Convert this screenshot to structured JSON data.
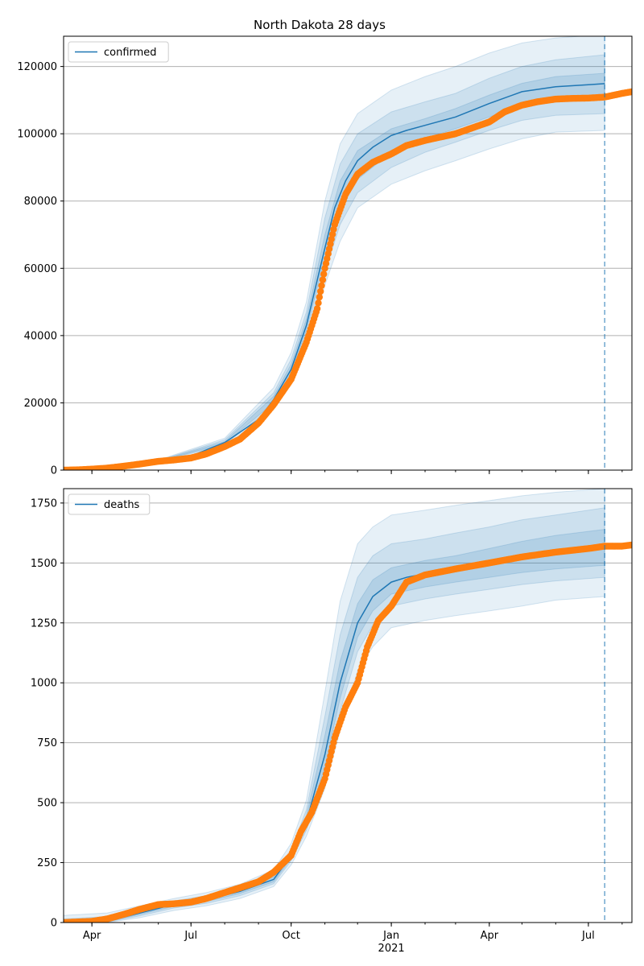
{
  "figure": {
    "title": "North Dakota 28 days"
  },
  "colors": {
    "model": "#1f77b4",
    "observed": "#ff7f0e",
    "band": "#1f77b4",
    "grid": "#b0b0b0",
    "axis": "#000000"
  },
  "chart_data": [
    {
      "type": "line",
      "name": "confirmed",
      "title": "North Dakota 28 days",
      "xlabel": "",
      "ylabel": "",
      "x_range": [
        "2020-03-06",
        "2021-08-10"
      ],
      "ylim": [
        0,
        129000
      ],
      "yticks": [
        0,
        20000,
        40000,
        60000,
        80000,
        100000,
        120000
      ],
      "ytick_labels": [
        "0",
        "20000",
        "40000",
        "60000",
        "80000",
        "100000",
        "120000"
      ],
      "grid": "horizontal",
      "legend": {
        "placement": "top-left",
        "entries": [
          "confirmed"
        ]
      },
      "forecast_start": "2021-07-16",
      "model_median": {
        "x": [
          "2020-03-06",
          "2020-04-01",
          "2020-05-01",
          "2020-06-01",
          "2020-07-01",
          "2020-08-01",
          "2020-09-01",
          "2020-09-15",
          "2020-10-01",
          "2020-10-15",
          "2020-11-01",
          "2020-11-10",
          "2020-11-20",
          "2020-12-01",
          "2020-12-15",
          "2021-01-01",
          "2021-01-15",
          "2021-02-01",
          "2021-03-01",
          "2021-04-01",
          "2021-05-01",
          "2021-06-01",
          "2021-07-01",
          "2021-07-16"
        ],
        "y": [
          0,
          300,
          1200,
          2700,
          4200,
          8200,
          15000,
          21000,
          30000,
          43000,
          66000,
          78000,
          86000,
          92000,
          96000,
          99500,
          101000,
          102500,
          105000,
          109000,
          112500,
          114000,
          114600,
          114900
        ]
      },
      "bands": [
        {
          "x": [
            "2020-03-06",
            "2020-06-01",
            "2020-08-01",
            "2020-09-15",
            "2020-10-01",
            "2020-10-15",
            "2020-11-01",
            "2020-11-15",
            "2020-12-01",
            "2021-01-01",
            "2021-02-01",
            "2021-03-01",
            "2021-04-01",
            "2021-05-01",
            "2021-06-01",
            "2021-07-16"
          ],
          "lower": [
            0,
            2500,
            7200,
            18000,
            26000,
            37000,
            55000,
            68000,
            78000,
            85000,
            89000,
            92000,
            95500,
            98500,
            100500,
            101000
          ],
          "upper": [
            200,
            3000,
            9500,
            24500,
            35000,
            50000,
            80000,
            97000,
            106000,
            113000,
            117000,
            120000,
            124000,
            127000,
            128500,
            129500
          ]
        },
        {
          "x": [
            "2020-03-06",
            "2020-06-01",
            "2020-08-01",
            "2020-09-15",
            "2020-10-01",
            "2020-10-15",
            "2020-11-01",
            "2020-11-15",
            "2020-12-01",
            "2021-01-01",
            "2021-02-01",
            "2021-03-01",
            "2021-04-01",
            "2021-05-01",
            "2021-06-01",
            "2021-07-16"
          ],
          "lower": [
            0,
            2600,
            7600,
            19000,
            27500,
            39500,
            59000,
            73000,
            82500,
            90000,
            94500,
            97500,
            101000,
            104000,
            105500,
            106000
          ],
          "upper": [
            150,
            2850,
            9000,
            23000,
            33000,
            47000,
            75000,
            91000,
            100000,
            106500,
            109500,
            112000,
            116500,
            120000,
            122000,
            123500
          ]
        },
        {
          "x": [
            "2020-03-06",
            "2020-06-01",
            "2020-08-01",
            "2020-09-15",
            "2020-10-01",
            "2020-10-15",
            "2020-11-01",
            "2020-11-15",
            "2020-12-01",
            "2021-01-01",
            "2021-02-01",
            "2021-03-01",
            "2021-04-01",
            "2021-05-01",
            "2021-06-01",
            "2021-07-16"
          ],
          "lower": [
            0,
            2650,
            7900,
            20000,
            29000,
            41500,
            63000,
            77500,
            86500,
            94500,
            98500,
            101500,
            105000,
            108500,
            110500,
            111000
          ],
          "upper": [
            100,
            2800,
            8500,
            22000,
            31500,
            45000,
            70000,
            86000,
            95000,
            101500,
            104500,
            107500,
            111500,
            115000,
            117000,
            118000
          ]
        }
      ],
      "observed": {
        "x": [
          "2020-03-06",
          "2020-03-20",
          "2020-04-01",
          "2020-04-15",
          "2020-05-01",
          "2020-05-15",
          "2020-06-01",
          "2020-06-15",
          "2020-07-01",
          "2020-07-15",
          "2020-08-01",
          "2020-08-15",
          "2020-09-01",
          "2020-09-15",
          "2020-10-01",
          "2020-10-15",
          "2020-10-25",
          "2020-11-01",
          "2020-11-10",
          "2020-11-20",
          "2020-12-01",
          "2020-12-15",
          "2021-01-01",
          "2021-01-15",
          "2021-02-01",
          "2021-03-01",
          "2021-04-01",
          "2021-04-15",
          "2021-05-01",
          "2021-05-15",
          "2021-06-01",
          "2021-06-15",
          "2021-07-01",
          "2021-07-16",
          "2021-08-01",
          "2021-08-10"
        ],
        "y": [
          0,
          100,
          300,
          600,
          1200,
          1800,
          2600,
          3000,
          3600,
          4800,
          7000,
          9200,
          14000,
          19500,
          27000,
          38000,
          48000,
          60000,
          73000,
          82000,
          88000,
          91500,
          94000,
          96500,
          98000,
          100000,
          103500,
          106500,
          108500,
          109500,
          110300,
          110500,
          110600,
          110900,
          112000,
          112500
        ]
      }
    },
    {
      "type": "line",
      "name": "deaths",
      "xlabel": "",
      "ylabel": "",
      "x_range": [
        "2020-03-06",
        "2021-08-10"
      ],
      "ylim": [
        0,
        1810
      ],
      "yticks": [
        0,
        250,
        500,
        750,
        1000,
        1250,
        1500,
        1750
      ],
      "ytick_labels": [
        "0",
        "250",
        "500",
        "750",
        "1000",
        "1250",
        "1500",
        "1750"
      ],
      "xticks": [
        "2020-04-01",
        "2020-07-01",
        "2020-10-01",
        "2021-01-01",
        "2021-04-01",
        "2021-07-01"
      ],
      "xtick_labels": [
        "Apr",
        "Jul",
        "Oct",
        "Jan",
        "Apr",
        "Jul"
      ],
      "x_year_label": {
        "date": "2021-01-01",
        "text": "2021"
      },
      "grid": "horizontal",
      "legend": {
        "placement": "top-left",
        "entries": [
          "deaths"
        ]
      },
      "forecast_start": "2021-07-16",
      "model_median": {
        "x": [
          "2020-03-06",
          "2020-04-15",
          "2020-05-15",
          "2020-06-15",
          "2020-07-15",
          "2020-08-15",
          "2020-09-15",
          "2020-10-01",
          "2020-10-15",
          "2020-11-01",
          "2020-11-15",
          "2020-12-01",
          "2020-12-15",
          "2021-01-01",
          "2021-01-15",
          "2021-02-01",
          "2021-03-01",
          "2021-04-01",
          "2021-05-01",
          "2021-06-01",
          "2021-07-01",
          "2021-07-16"
        ],
        "y": [
          0,
          5,
          40,
          75,
          95,
          130,
          180,
          280,
          420,
          700,
          1000,
          1250,
          1360,
          1420,
          1440,
          1455,
          1475,
          1495,
          1520,
          1545,
          1560,
          1565
        ]
      },
      "bands": [
        {
          "x": [
            "2020-03-06",
            "2020-04-15",
            "2020-05-15",
            "2020-06-15",
            "2020-07-15",
            "2020-08-15",
            "2020-09-15",
            "2020-10-01",
            "2020-10-15",
            "2020-11-01",
            "2020-11-15",
            "2020-12-01",
            "2020-12-15",
            "2021-01-01",
            "2021-02-01",
            "2021-03-01",
            "2021-04-01",
            "2021-05-01",
            "2021-06-01",
            "2021-07-16"
          ],
          "lower": [
            0,
            0,
            20,
            50,
            70,
            100,
            150,
            240,
            360,
            560,
            800,
            1050,
            1150,
            1230,
            1260,
            1280,
            1300,
            1320,
            1345,
            1360
          ],
          "upper": [
            30,
            40,
            70,
            100,
            125,
            160,
            220,
            330,
            510,
            960,
            1340,
            1580,
            1650,
            1700,
            1720,
            1740,
            1760,
            1780,
            1795,
            1810
          ]
        },
        {
          "x": [
            "2020-03-06",
            "2020-04-15",
            "2020-05-15",
            "2020-06-15",
            "2020-07-15",
            "2020-08-15",
            "2020-09-15",
            "2020-10-01",
            "2020-10-15",
            "2020-11-01",
            "2020-11-15",
            "2020-12-01",
            "2020-12-15",
            "2021-01-01",
            "2021-02-01",
            "2021-03-01",
            "2021-04-01",
            "2021-05-01",
            "2021-06-01",
            "2021-07-16"
          ],
          "lower": [
            0,
            2,
            28,
            60,
            80,
            112,
            162,
            258,
            385,
            610,
            880,
            1130,
            1240,
            1320,
            1350,
            1370,
            1390,
            1410,
            1425,
            1440
          ],
          "upper": [
            15,
            25,
            55,
            90,
            112,
            145,
            200,
            305,
            470,
            860,
            1200,
            1440,
            1530,
            1580,
            1600,
            1625,
            1650,
            1680,
            1700,
            1730
          ]
        },
        {
          "x": [
            "2020-03-06",
            "2020-04-15",
            "2020-05-15",
            "2020-06-15",
            "2020-07-15",
            "2020-08-15",
            "2020-09-15",
            "2020-10-01",
            "2020-10-15",
            "2020-11-01",
            "2020-11-15",
            "2020-12-01",
            "2020-12-15",
            "2021-01-01",
            "2021-02-01",
            "2021-03-01",
            "2021-04-01",
            "2021-05-01",
            "2021-06-01",
            "2021-07-16"
          ],
          "lower": [
            0,
            3,
            34,
            67,
            87,
            121,
            170,
            268,
            400,
            650,
            935,
            1190,
            1300,
            1370,
            1400,
            1420,
            1440,
            1460,
            1475,
            1490
          ],
          "upper": [
            8,
            12,
            46,
            82,
            104,
            138,
            190,
            293,
            445,
            780,
            1090,
            1330,
            1430,
            1480,
            1510,
            1530,
            1560,
            1590,
            1615,
            1640
          ]
        }
      ],
      "observed": {
        "x": [
          "2020-03-06",
          "2020-04-01",
          "2020-04-15",
          "2020-05-01",
          "2020-05-15",
          "2020-06-01",
          "2020-06-15",
          "2020-07-01",
          "2020-07-15",
          "2020-08-01",
          "2020-08-15",
          "2020-09-01",
          "2020-09-15",
          "2020-10-01",
          "2020-10-10",
          "2020-10-20",
          "2020-11-01",
          "2020-11-10",
          "2020-11-20",
          "2020-12-01",
          "2020-12-10",
          "2020-12-20",
          "2021-01-01",
          "2021-01-15",
          "2021-02-01",
          "2021-03-01",
          "2021-04-01",
          "2021-05-01",
          "2021-06-01",
          "2021-07-01",
          "2021-07-16",
          "2021-08-01",
          "2021-08-10"
        ],
        "y": [
          0,
          5,
          15,
          35,
          55,
          75,
          78,
          85,
          100,
          125,
          145,
          170,
          210,
          280,
          380,
          460,
          600,
          770,
          900,
          1000,
          1150,
          1260,
          1320,
          1420,
          1450,
          1475,
          1500,
          1525,
          1545,
          1560,
          1570,
          1570,
          1575
        ]
      }
    }
  ]
}
